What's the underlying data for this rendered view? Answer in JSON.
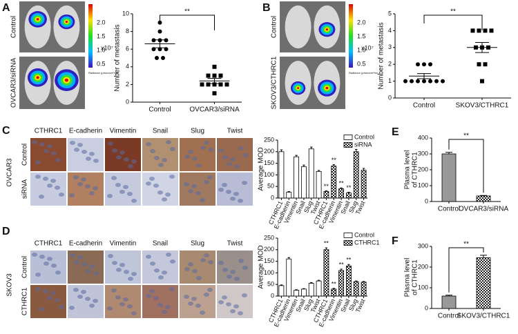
{
  "panel_labels": [
    "A",
    "B",
    "C",
    "D",
    "E",
    "F"
  ],
  "imaging": [
    {
      "rows": [
        "Control",
        "OVCAR3/siRNA"
      ],
      "colorbar_ticks": [
        "2.0",
        "1.5",
        "1.0",
        "0.5"
      ],
      "exponent": "x10⁷",
      "unit": "Radiance (p/sec/cm²/sr)"
    },
    {
      "rows": [
        "Control",
        "SKOV3/CTHRC1"
      ],
      "colorbar_ticks": [
        "2.0",
        "1.5",
        "1.0",
        "0.5"
      ],
      "exponent": "x10⁷",
      "unit": "Radiance (p/sec/cm²/sr)"
    }
  ],
  "ihc": [
    {
      "cell_line": "OVCAR3",
      "markers": [
        "CTHRC1",
        "E-cadherin",
        "Vimentin",
        "Snail",
        "Slug",
        "Twist"
      ],
      "rows": [
        "Control",
        "siRNA"
      ]
    },
    {
      "cell_line": "SKOV3",
      "markers": [
        "CTHRC1",
        "E-cadherin",
        "Vimentin",
        "Snail",
        "Slug",
        "Twist"
      ],
      "rows": [
        "Control",
        "CTHRC1"
      ]
    }
  ],
  "chart_data": [
    {
      "type": "dot",
      "ylabel": "Number of metastasis",
      "categories": [
        "Control",
        "OVCAR3/siRNA"
      ],
      "points": [
        [
          9,
          8,
          7,
          7,
          7,
          6,
          6,
          6,
          5,
          5
        ],
        [
          4,
          3,
          3,
          3,
          2,
          2,
          2,
          2,
          2,
          1
        ]
      ],
      "markers": [
        "circle",
        "square"
      ],
      "means": [
        6.6,
        2.4
      ],
      "errors": [
        0.45,
        0.3
      ],
      "ylim": [
        0,
        10
      ],
      "yticks": [
        0,
        2,
        4,
        6,
        8,
        10
      ],
      "annotation": "**"
    },
    {
      "type": "dot",
      "ylabel": "Number of metastasis",
      "categories": [
        "Control",
        "SKOV3/CTHRC1"
      ],
      "points": [
        [
          2,
          2,
          2,
          1,
          1,
          1,
          1,
          1,
          1,
          1
        ],
        [
          4,
          4,
          4,
          4,
          3,
          3,
          3,
          2,
          2,
          1
        ]
      ],
      "markers": [
        "circle",
        "square"
      ],
      "means": [
        1.3,
        3.0
      ],
      "errors": [
        0.15,
        0.3
      ],
      "ylim": [
        0,
        5
      ],
      "yticks": [
        0,
        1,
        2,
        3,
        4,
        5
      ],
      "annotation": "**"
    },
    {
      "type": "bar",
      "ylabel": "Average MOD",
      "categories": [
        "CTHRC1",
        "E-cadherin",
        "Vimentin",
        "Snail",
        "Slug",
        "Twist",
        "CTHRC1",
        "E-cadherin",
        "Vimentin",
        "Snail",
        "Slug",
        "Twist"
      ],
      "series": [
        {
          "name": "Control",
          "fill": "white",
          "values": [
            200,
            25,
            178,
            135,
            212,
            115,
            null,
            null,
            null,
            null,
            null,
            null
          ],
          "errors": [
            8,
            3,
            6,
            7,
            8,
            4,
            null,
            null,
            null,
            null,
            null,
            null
          ]
        },
        {
          "name": "siRNA",
          "fill": "checker",
          "values": [
            null,
            null,
            null,
            null,
            null,
            null,
            28,
            138,
            40,
            22,
            200,
            120
          ],
          "errors": [
            null,
            null,
            null,
            null,
            null,
            null,
            3,
            6,
            4,
            3,
            10,
            8
          ],
          "significance": [
            null,
            null,
            null,
            null,
            null,
            null,
            "**",
            "**",
            "**",
            "**",
            null,
            null
          ]
        }
      ],
      "legend": "upper right",
      "ylim": [
        0,
        250
      ],
      "yticks": [
        0,
        50,
        100,
        150,
        200,
        250
      ]
    },
    {
      "type": "bar",
      "ylabel": "Average MOD",
      "categories": [
        "CTHRC1",
        "E-cadherin",
        "Vimentin",
        "Snail",
        "Slug",
        "Twist",
        "CTHRC1",
        "E-cadherin",
        "Vimentin",
        "Snail",
        "Slug",
        "Twist"
      ],
      "series": [
        {
          "name": "Control",
          "fill": "white",
          "values": [
            45,
            160,
            25,
            30,
            55,
            65,
            null,
            null,
            null,
            null,
            null,
            null
          ],
          "errors": [
            3,
            6,
            2,
            2,
            3,
            3,
            null,
            null,
            null,
            null,
            null,
            null
          ]
        },
        {
          "name": "CTHRC1",
          "fill": "checker",
          "values": [
            null,
            null,
            null,
            null,
            null,
            null,
            200,
            30,
            110,
            130,
            62,
            60
          ],
          "errors": [
            null,
            null,
            null,
            null,
            null,
            null,
            8,
            3,
            6,
            6,
            3,
            3
          ],
          "significance": [
            null,
            null,
            null,
            null,
            null,
            null,
            "**",
            "**",
            "**",
            "**",
            null,
            null
          ]
        }
      ],
      "legend": "upper right",
      "ylim": [
        0,
        250
      ],
      "yticks": [
        0,
        50,
        100,
        150,
        200,
        250
      ]
    },
    {
      "type": "bar",
      "ylabel": [
        "Plasma level",
        "of CTHRC1"
      ],
      "categories": [
        "Control",
        "OVCAR3/siRNA"
      ],
      "values": [
        300,
        35
      ],
      "errors": [
        10,
        3
      ],
      "fills": [
        "#999999",
        "checker"
      ],
      "ylim": [
        0,
        400
      ],
      "yticks": [
        0,
        100,
        200,
        300,
        400
      ],
      "annotation": "**"
    },
    {
      "type": "bar",
      "ylabel": [
        "Plasma level",
        "of CTHRC1"
      ],
      "categories": [
        "Control",
        "SKOV3/CTHRC1"
      ],
      "values": [
        60,
        245
      ],
      "errors": [
        4,
        12
      ],
      "fills": [
        "#999999",
        "checker"
      ],
      "ylim": [
        0,
        300
      ],
      "yticks": [
        0,
        100,
        200,
        300
      ],
      "annotation": "**"
    }
  ]
}
